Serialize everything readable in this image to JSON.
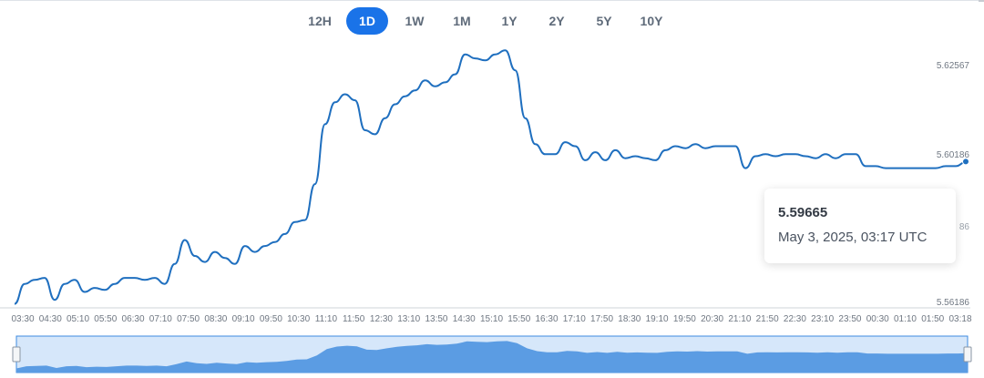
{
  "tabs": [
    {
      "label": "12H",
      "active": false
    },
    {
      "label": "1D",
      "active": true
    },
    {
      "label": "1W",
      "active": false
    },
    {
      "label": "1M",
      "active": false
    },
    {
      "label": "1Y",
      "active": false
    },
    {
      "label": "2Y",
      "active": false
    },
    {
      "label": "5Y",
      "active": false
    },
    {
      "label": "10Y",
      "active": false
    }
  ],
  "tooltip": {
    "value": "5.59665",
    "date": "May 3, 2025, 03:17 UTC"
  },
  "colors": {
    "line": "#1f6fbf",
    "accent": "#1a73e8",
    "navigator_fill": "#5b9ce3",
    "navigator_bg": "#d6e7fa"
  },
  "chart_data": {
    "type": "line",
    "x_tick_labels": [
      "03:30",
      "04:30",
      "05:10",
      "05:50",
      "06:30",
      "07:10",
      "07:50",
      "08:30",
      "09:10",
      "09:50",
      "10:30",
      "11:10",
      "11:50",
      "12:30",
      "13:10",
      "13:50",
      "14:30",
      "15:10",
      "15:50",
      "16:30",
      "17:10",
      "17:50",
      "18:30",
      "19:10",
      "19:50",
      "20:30",
      "21:10",
      "21:50",
      "22:30",
      "23:10",
      "23:50",
      "00:30",
      "01:10",
      "01:50",
      "03:18"
    ],
    "y_tick_labels": [
      "5.62567",
      "5.60186",
      "5.56186"
    ],
    "y_partial_label": "86",
    "ylim": [
      5.56,
      5.628
    ],
    "series": [
      {
        "values": [
          5.561,
          5.566,
          5.567,
          5.5675,
          5.562,
          5.566,
          5.567,
          5.564,
          5.565,
          5.5645,
          5.566,
          5.5675,
          5.5675,
          5.567,
          5.5675,
          5.566,
          5.571,
          5.577,
          5.573,
          5.5715,
          5.574,
          5.5725,
          5.571,
          5.5755,
          5.574,
          5.5755,
          5.5765,
          5.5785,
          5.5815,
          5.582,
          5.591,
          5.606,
          5.6115,
          5.6135,
          5.612,
          5.6045,
          5.6035,
          5.6075,
          5.611,
          5.613,
          5.6145,
          5.617,
          5.6155,
          5.6165,
          5.6185,
          5.6235,
          5.6225,
          5.622,
          5.6235,
          5.6245,
          5.6195,
          5.6075,
          5.601,
          5.5985,
          5.5985,
          5.6015,
          5.6005,
          5.597,
          5.599,
          5.597,
          5.5995,
          5.5975,
          5.598,
          5.5975,
          5.597,
          5.5995,
          5.6005,
          5.6,
          5.601,
          5.6,
          5.6005,
          5.6005,
          5.6005,
          5.595,
          5.598,
          5.5985,
          5.598,
          5.5985,
          5.5985,
          5.598,
          5.5975,
          5.5985,
          5.5975,
          5.5985,
          5.5985,
          5.5955,
          5.5955,
          5.595,
          5.595,
          5.595,
          5.595,
          5.595,
          5.595,
          5.5955,
          5.5955,
          5.5965
        ]
      }
    ],
    "tooltip_point": {
      "x": "03:17",
      "y": 5.59665
    },
    "legend": "none"
  }
}
